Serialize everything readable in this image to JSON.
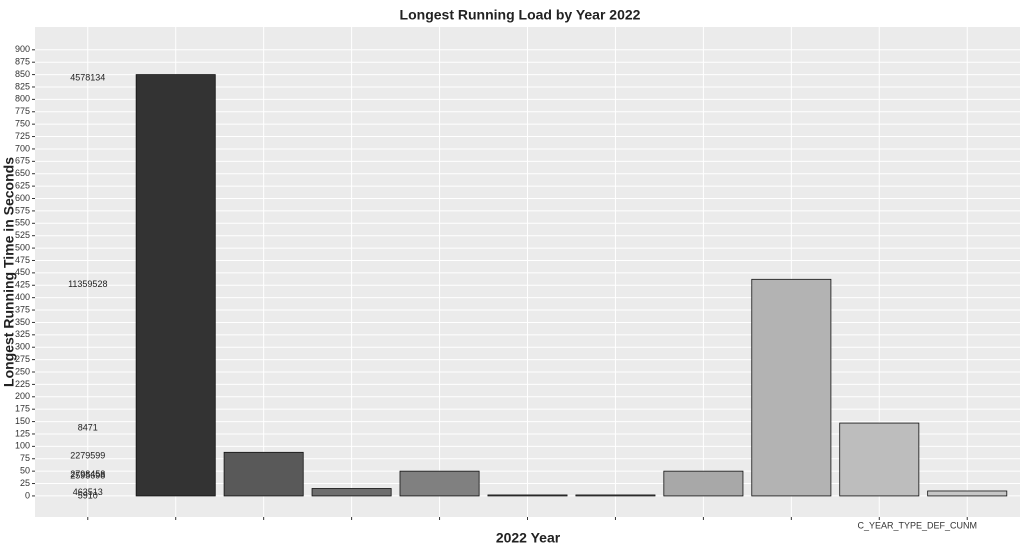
{
  "chart_data": {
    "type": "bar",
    "title": "Longest Running Load by Year 2022",
    "x_label": "2022 Year",
    "y_label": "Longest Running Time in Seconds",
    "categories": [
      null,
      null,
      null,
      null,
      null,
      null,
      null,
      null,
      null,
      null,
      "C_YEAR_TYPE_DEF_CUNM"
    ],
    "values": [
      null,
      850,
      88,
      15,
      50,
      2,
      2,
      50,
      437,
      147,
      10
    ],
    "colors": [
      "#333333",
      "#333333",
      "#595959",
      "#6e6e6e",
      "#808080",
      "#8f8f8f",
      "#9c9c9c",
      "#a8a8a8",
      "#b3b3b3",
      "#bdbdbd",
      "#c6c6c6"
    ],
    "annotations": [
      {
        "text": "4578134",
        "y": 843
      },
      {
        "text": "11359528",
        "y": 426
      },
      {
        "text": "8471",
        "y": 137
      },
      {
        "text": "2279599",
        "y": 80
      },
      {
        "text": "2798458",
        "y": 43
      },
      {
        "text": "2595698",
        "y": 40
      },
      {
        "text": "463513",
        "y": 7
      },
      {
        "text": "5910",
        "y": 0
      }
    ],
    "ylim": [
      -42.5,
      946
    ],
    "yticks": [
      0,
      25,
      50,
      75,
      100,
      125,
      150,
      175,
      200,
      225,
      250,
      275,
      300,
      325,
      350,
      375,
      400,
      425,
      450,
      475,
      500,
      525,
      550,
      575,
      600,
      625,
      650,
      675,
      700,
      725,
      750,
      775,
      800,
      825,
      850,
      875,
      900
    ],
    "grid": true
  }
}
